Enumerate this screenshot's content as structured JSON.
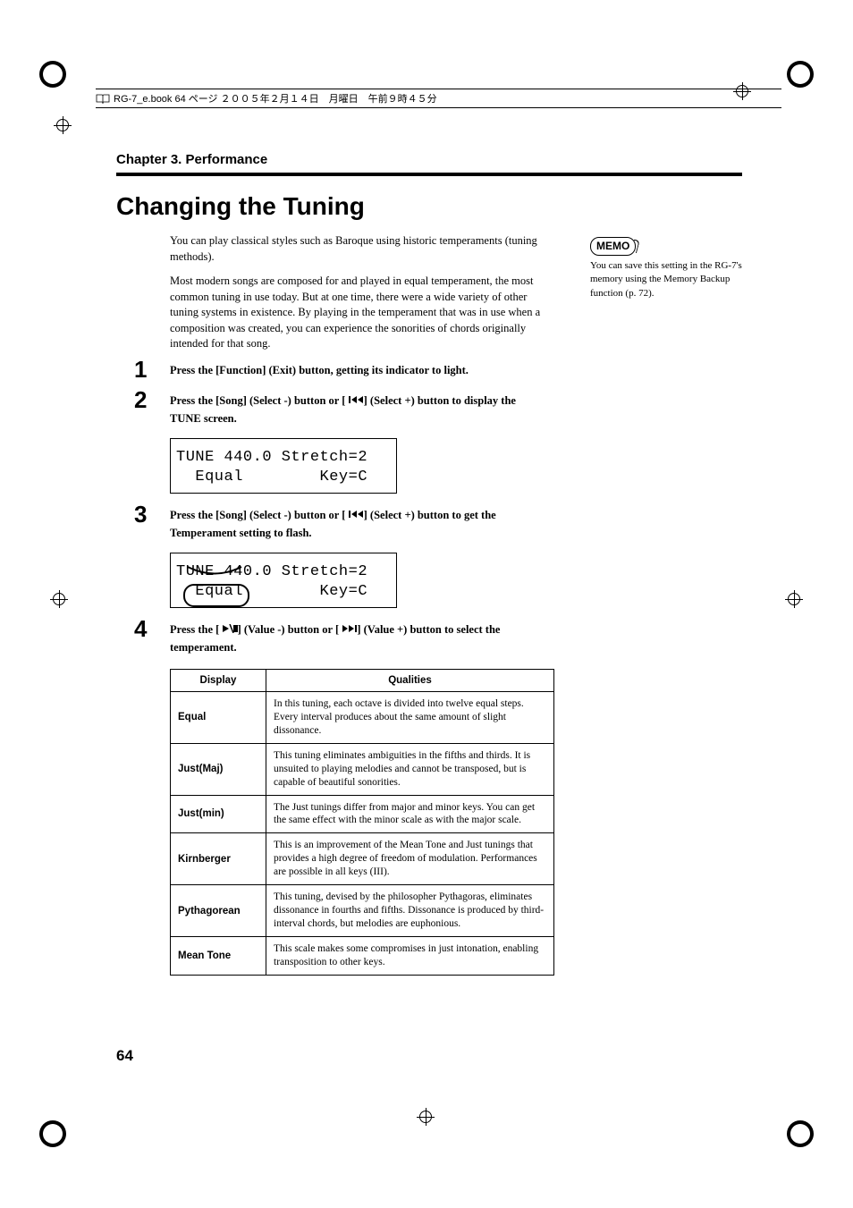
{
  "header": {
    "book_info": "RG-7_e.book  64 ページ  ２００５年２月１４日　月曜日　午前９時４５分"
  },
  "chapter": "Chapter 3. Performance",
  "title": "Changing the Tuning",
  "intro": [
    "You can play classical styles such as Baroque using historic temperaments (tuning methods).",
    "Most modern songs are composed for and played in equal temperament, the most common tuning in use today. But at one time, there were a wide variety of other tuning systems in existence. By playing in the temperament that was in use when a composition was created, you can experience the sonorities of chords originally intended for that song."
  ],
  "steps": [
    {
      "num": "1",
      "text_parts": [
        "Press the [Function] (Exit) button, getting its indicator to light."
      ]
    },
    {
      "num": "2",
      "text_parts": [
        "Press the [Song] (Select -) button or [ ",
        " ] (Select +) button to display the TUNE screen."
      ],
      "icon": "rewind",
      "lcd": [
        "TUNE 440.0 Stretch=2",
        "  Equal        Key=C"
      ]
    },
    {
      "num": "3",
      "text_parts": [
        "Press the [Song] (Select -) button or [ ",
        " ] (Select +) button to get the Temperament setting to flash."
      ],
      "icon": "rewind",
      "lcd": [
        "TUNE 440.0 Stretch=2",
        "  Equal        Key=C"
      ],
      "highlight": true
    },
    {
      "num": "4",
      "text_parts": [
        "Press the [ ",
        " ] (Value -) button or [ ",
        " ] (Value +) button to select the temperament."
      ],
      "icons": [
        "play-stop",
        "ffwd-end"
      ]
    }
  ],
  "table": {
    "headers": [
      "Display",
      "Qualities"
    ],
    "rows": [
      {
        "label": "Equal",
        "desc": "In this tuning, each octave is divided into twelve equal steps. Every interval produces about the same amount of slight dissonance."
      },
      {
        "label": "Just(Maj)",
        "desc": "This tuning eliminates ambiguities in the fifths and thirds. It is unsuited to playing melodies and cannot be transposed, but is capable of beautiful sonorities."
      },
      {
        "label": "Just(min)",
        "desc": "The Just tunings differ from major and minor keys. You can get the same effect with the minor scale as with the major scale."
      },
      {
        "label": "Kirnberger",
        "desc": "This is an improvement of the Mean Tone and Just tunings that provides a high degree of freedom of modulation. Performances are possible in all keys (III)."
      },
      {
        "label": "Pythagorean",
        "desc": "This tuning, devised by the philosopher Pythagoras, eliminates dissonance in fourths and fifths. Dissonance is produced by third-interval chords, but melodies are euphonious."
      },
      {
        "label": "Mean Tone",
        "desc": "This scale makes some compromises in just intonation, enabling transposition to other keys."
      }
    ]
  },
  "memo": {
    "label": "MEMO",
    "text": "You can save this setting in the RG-7's memory using the Memory Backup function (p. 72)."
  },
  "page_number": "64",
  "colors": {
    "text": "#000000",
    "bg": "#ffffff"
  }
}
